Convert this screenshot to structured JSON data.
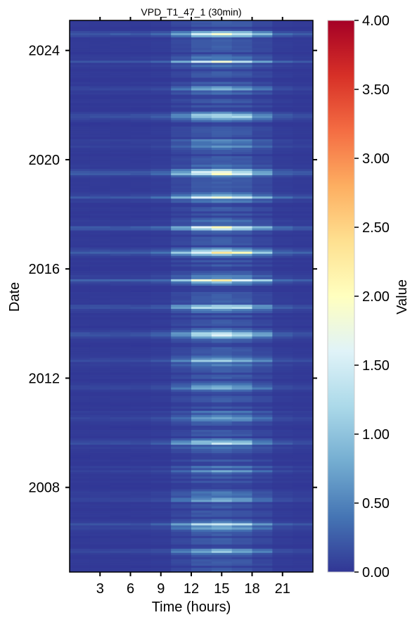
{
  "chart_data": {
    "type": "heatmap",
    "title": "VPD_T1_47_1 (30min)",
    "xlabel": "Time (hours)",
    "ylabel": "Date",
    "x_ticks": [
      3,
      6,
      9,
      12,
      15,
      18,
      21
    ],
    "xlim": [
      0,
      24
    ],
    "y_ticks": [
      2008,
      2012,
      2016,
      2020,
      2024
    ],
    "ylim": [
      2004.9,
      2025.1
    ],
    "colorbar": {
      "label": "Value",
      "min": 0.0,
      "max": 4.0,
      "ticks": [
        "0.00",
        "0.50",
        "1.00",
        "1.50",
        "2.00",
        "2.50",
        "3.00",
        "3.50",
        "4.00"
      ],
      "colormap": "RdYlBu_r"
    },
    "values_note": "",
    "bright_rows": [
      {
        "year": 2006.6,
        "peak": 2.4
      },
      {
        "year": 2007.7,
        "peak": 1.6
      },
      {
        "year": 2009.6,
        "peak": 1.3
      },
      {
        "year": 2010.6,
        "peak": 1.4
      },
      {
        "year": 2012.6,
        "peak": 1.5
      },
      {
        "year": 2013.6,
        "peak": 1.9
      },
      {
        "year": 2014.6,
        "peak": 1.7
      },
      {
        "year": 2015.6,
        "peak": 2.6
      },
      {
        "year": 2016.6,
        "peak": 2.3
      },
      {
        "year": 2017.5,
        "peak": 2.2
      },
      {
        "year": 2018.6,
        "peak": 2.2
      },
      {
        "year": 2019.5,
        "peak": 2.4
      },
      {
        "year": 2020.6,
        "peak": 1.6
      },
      {
        "year": 2021.6,
        "peak": 1.7
      },
      {
        "year": 2022.6,
        "peak": 2.9
      },
      {
        "year": 2023.6,
        "peak": 1.8
      },
      {
        "year": 2024.6,
        "peak": 1.9
      }
    ],
    "grid": false,
    "legend": "colorbar-right"
  }
}
